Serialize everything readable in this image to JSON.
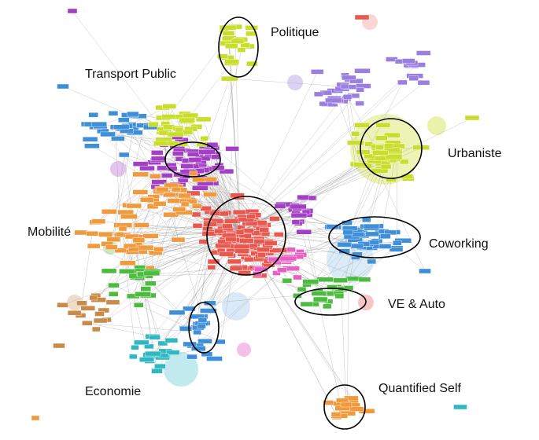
{
  "labels": {
    "politique": "Politique",
    "transport_public": "Transport Public",
    "urbaniste": "Urbaniste",
    "mobilite": "Mobilité",
    "coworking": "Coworking",
    "ve_auto": "VE & Auto",
    "economie": "Economie",
    "quantified_self": "Quantified Self"
  },
  "colors": {
    "red": "#e8584f",
    "purple": "#a33fc4",
    "orange": "#ef9a3c",
    "yellow_green": "#c8de2a",
    "blue": "#3f8fd8",
    "green": "#4dbb3f",
    "teal": "#2fb8c2",
    "pink": "#e85fc4",
    "lavender": "#9a7ee0",
    "brown": "#c98a4a",
    "edge": "#9a9a9a",
    "ellipse": "#000000"
  }
}
